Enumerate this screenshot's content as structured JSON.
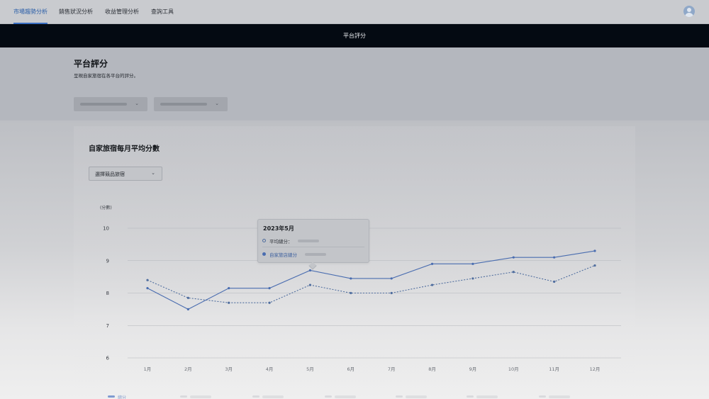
{
  "nav": {
    "tabs": [
      {
        "label": "市場趨勢分析",
        "active": true
      },
      {
        "label": "銷售狀況分析",
        "active": false
      },
      {
        "label": "收益管理分析",
        "active": false
      },
      {
        "label": "查詢工具",
        "active": false
      }
    ],
    "avatar_icon": "user-avatar-icon"
  },
  "banner": {
    "title": "平台評分"
  },
  "page": {
    "title": "平台評分",
    "subtitle": "呈現自家旅宿在各平台的評分。"
  },
  "filters": {
    "dropdown1": {
      "value": ""
    },
    "dropdown2": {
      "value": ""
    }
  },
  "card": {
    "title": "自家旅宿每月平均分數",
    "select_label": "選擇競品旅宿"
  },
  "tooltip": {
    "title": "2023年5月",
    "rows": [
      {
        "label": "平均總分："
      },
      {
        "label": "自家旅店總分"
      }
    ]
  },
  "legend": {
    "items": [
      "總分",
      "",
      "",
      "",
      "",
      "",
      ""
    ]
  },
  "colors": {
    "accent": "#3a6fc2",
    "series_solid": "#4a6db0",
    "series_dashed": "#4f6d9e",
    "banner_bg": "#040a12"
  },
  "chart_data": {
    "type": "line",
    "ylabel": "(分數)",
    "ylim": [
      6,
      10
    ],
    "yticks": [
      6,
      7,
      8,
      9,
      10
    ],
    "categories": [
      "1月",
      "2月",
      "3月",
      "4月",
      "5月",
      "6月",
      "7月",
      "8月",
      "9月",
      "10月",
      "11月",
      "12月"
    ],
    "series": [
      {
        "name": "自家旅店總分",
        "style": "solid",
        "values": [
          8.15,
          7.5,
          8.15,
          8.15,
          8.7,
          8.45,
          8.45,
          8.9,
          8.9,
          9.1,
          9.1,
          9.3
        ]
      },
      {
        "name": "平均總分",
        "style": "dashed",
        "values": [
          8.4,
          7.85,
          7.7,
          7.7,
          8.25,
          8.0,
          8.0,
          8.25,
          8.45,
          8.65,
          8.35,
          8.85
        ]
      }
    ],
    "grid": true
  }
}
